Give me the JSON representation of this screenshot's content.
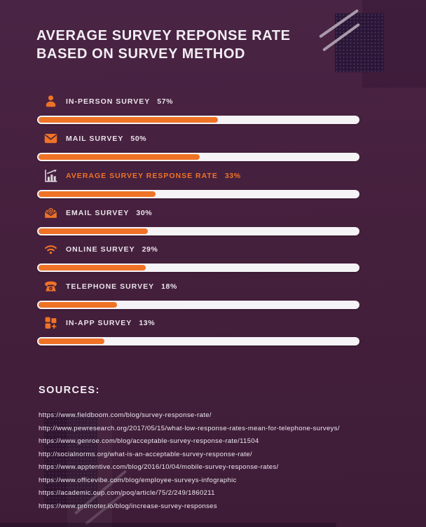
{
  "title": {
    "line1": "AVERAGE SURVEY REPONSE RATE",
    "line2": "BASED ON SURVEY METHOD"
  },
  "rows": [
    {
      "label": "IN-PERSON SURVEY",
      "value": "57%",
      "value_pct": 57,
      "icon": "person-icon",
      "highlight": false
    },
    {
      "label": "MAIL SURVEY",
      "value": "50%",
      "value_pct": 50,
      "icon": "envelope-icon",
      "highlight": false
    },
    {
      "label": "AVERAGE SURVEY RESPONSE RATE",
      "value": "33%",
      "value_pct": 33,
      "icon": "bar-chart-arrow-icon",
      "highlight": true
    },
    {
      "label": "EMAIL SURVEY",
      "value": "30%",
      "value_pct": 30,
      "icon": "open-envelope-icon",
      "highlight": false
    },
    {
      "label": "ONLINE SURVEY",
      "value": "29%",
      "value_pct": 29,
      "icon": "wifi-icon",
      "highlight": false
    },
    {
      "label": "TELEPHONE SURVEY",
      "value": "18%",
      "value_pct": 18,
      "icon": "telephone-icon",
      "highlight": false
    },
    {
      "label": "IN-APP SURVEY",
      "value": "13%",
      "value_pct": 13,
      "icon": "app-grid-plus-icon",
      "highlight": false
    }
  ],
  "sources": {
    "heading": "SOURCES:",
    "urls": [
      "https://www.fieldboom.com/blog/survey-response-rate/",
      "http://www.pewresearch.org/2017/05/15/what-low-response-rates-mean-for-telephone-surveys/",
      "https://www.genroe.com/blog/acceptable-survey-response-rate/11504",
      "http://socialnorms.org/what-is-an-acceptable-survey-response-rate/",
      "https://www.apptentive.com/blog/2016/10/04/mobile-survey-response-rates/",
      "https://www.officevibe.com/blog/employee-surveys-infographic",
      "https://academic.oup.com/poq/article/75/2/249/1860211",
      "https://www.promoter.io/blog/increase-survey-responses"
    ]
  },
  "colors": {
    "background": "#45203D",
    "accent_orange": "#EF7326",
    "bar_track": "#F6F3F6",
    "text_light": "#E9E3EA",
    "icon_white": "#DCD6DD",
    "deco_dark": "#2A1737"
  },
  "chart_data": {
    "type": "bar",
    "orientation": "horizontal",
    "title": "AVERAGE SURVEY REPONSE RATE BASED ON SURVEY METHOD",
    "categories": [
      "IN-PERSON SURVEY",
      "MAIL SURVEY",
      "AVERAGE SURVEY RESPONSE RATE",
      "EMAIL SURVEY",
      "ONLINE SURVEY",
      "TELEPHONE SURVEY",
      "IN-APP SURVEY"
    ],
    "values": [
      57,
      50,
      33,
      30,
      29,
      18,
      13
    ],
    "unit": "%",
    "xlim": [
      0,
      100
    ],
    "legend": false,
    "grid": false,
    "highlighted_category": "AVERAGE SURVEY RESPONSE RATE"
  }
}
